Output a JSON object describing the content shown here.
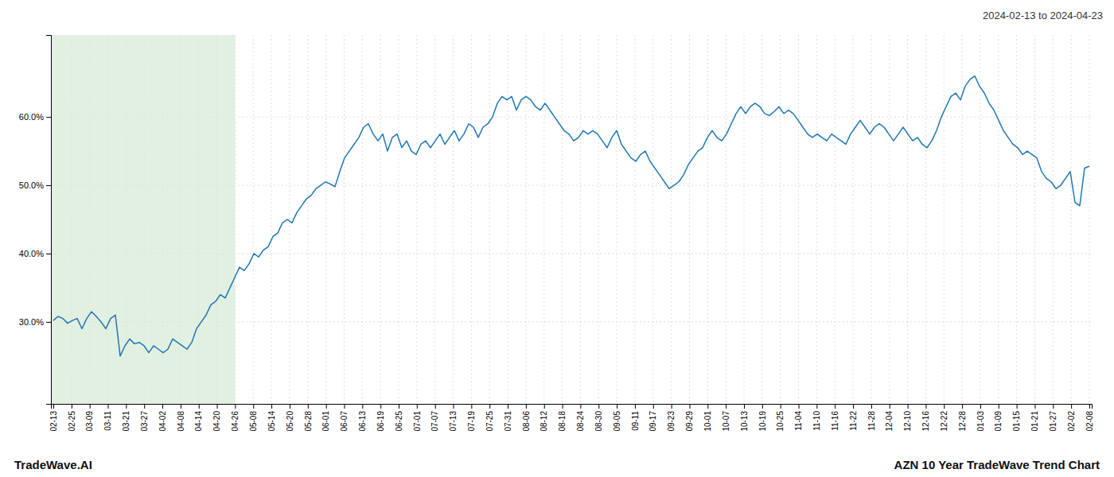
{
  "chart_data": {
    "type": "line",
    "title": "AZN 10 Year TradeWave Trend Chart",
    "subtitle": "2024-02-13 to 2024-04-23",
    "annotations": [
      "TradeWave.AI"
    ],
    "grid": true,
    "xlim": [
      -0.5,
      217.5
    ],
    "xticks": [
      {
        "value": 0,
        "label": "02-13"
      },
      {
        "value": 3.81,
        "label": "02-25"
      },
      {
        "value": 7.61,
        "label": "03-09"
      },
      {
        "value": 11.42,
        "label": "03-11"
      },
      {
        "value": 15.23,
        "label": "03-21"
      },
      {
        "value": 19.04,
        "label": "03-27"
      },
      {
        "value": 22.84,
        "label": "04-02"
      },
      {
        "value": 26.65,
        "label": "04-08"
      },
      {
        "value": 30.46,
        "label": "04-14"
      },
      {
        "value": 34.26,
        "label": "04-20"
      },
      {
        "value": 38.07,
        "label": "04-26"
      },
      {
        "value": 41.88,
        "label": "05-08"
      },
      {
        "value": 45.68,
        "label": "05-14"
      },
      {
        "value": 49.49,
        "label": "05-20"
      },
      {
        "value": 53.3,
        "label": "05-28"
      },
      {
        "value": 57.11,
        "label": "06-01"
      },
      {
        "value": 60.91,
        "label": "06-07"
      },
      {
        "value": 64.72,
        "label": "06-13"
      },
      {
        "value": 68.53,
        "label": "06-19"
      },
      {
        "value": 72.33,
        "label": "06-25"
      },
      {
        "value": 76.14,
        "label": "07-01"
      },
      {
        "value": 79.95,
        "label": "07-07"
      },
      {
        "value": 83.75,
        "label": "07-13"
      },
      {
        "value": 87.56,
        "label": "07-19"
      },
      {
        "value": 91.37,
        "label": "07-25"
      },
      {
        "value": 95.18,
        "label": "07-31"
      },
      {
        "value": 98.98,
        "label": "08-06"
      },
      {
        "value": 102.79,
        "label": "08-12"
      },
      {
        "value": 106.6,
        "label": "08-18"
      },
      {
        "value": 110.4,
        "label": "08-24"
      },
      {
        "value": 114.21,
        "label": "08-30"
      },
      {
        "value": 118.02,
        "label": "09-05"
      },
      {
        "value": 121.82,
        "label": "09-11"
      },
      {
        "value": 125.63,
        "label": "09-17"
      },
      {
        "value": 129.44,
        "label": "09-23"
      },
      {
        "value": 133.25,
        "label": "09-29"
      },
      {
        "value": 137.05,
        "label": "10-01"
      },
      {
        "value": 140.86,
        "label": "10-07"
      },
      {
        "value": 144.67,
        "label": "10-13"
      },
      {
        "value": 148.47,
        "label": "10-19"
      },
      {
        "value": 152.28,
        "label": "10-25"
      },
      {
        "value": 156.09,
        "label": "11-04"
      },
      {
        "value": 159.89,
        "label": "11-10"
      },
      {
        "value": 163.7,
        "label": "11-16"
      },
      {
        "value": 167.51,
        "label": "11-22"
      },
      {
        "value": 171.32,
        "label": "11-28"
      },
      {
        "value": 175.12,
        "label": "12-04"
      },
      {
        "value": 178.93,
        "label": "12-10"
      },
      {
        "value": 182.74,
        "label": "12-16"
      },
      {
        "value": 186.54,
        "label": "12-22"
      },
      {
        "value": 190.35,
        "label": "12-28"
      },
      {
        "value": 194.16,
        "label": "01-03"
      },
      {
        "value": 197.96,
        "label": "01-09"
      },
      {
        "value": 201.77,
        "label": "01-15"
      },
      {
        "value": 205.58,
        "label": "01-21"
      },
      {
        "value": 209.39,
        "label": "01-27"
      },
      {
        "value": 213.19,
        "label": "02-02"
      },
      {
        "value": 217,
        "label": "02-08"
      }
    ],
    "ylim": [
      18.0,
      72.0
    ],
    "yticks": [
      {
        "value": 30.0,
        "label": "30.0%"
      },
      {
        "value": 40.0,
        "label": "40.0%"
      },
      {
        "value": 50.0,
        "label": "50.0%"
      },
      {
        "value": 60.0,
        "label": "60.0%"
      }
    ],
    "shaded_region": {
      "start": -0.5,
      "end": 38.07,
      "color": "#d5ead5"
    },
    "values": [
      30.2,
      30.8,
      30.5,
      29.8,
      30.2,
      30.5,
      29.0,
      30.5,
      31.5,
      30.8,
      30.0,
      29.0,
      30.5,
      31.0,
      25.0,
      26.5,
      27.5,
      26.8,
      27.0,
      26.5,
      25.5,
      26.5,
      26.0,
      25.5,
      26.0,
      27.5,
      27.0,
      26.5,
      26.0,
      27.0,
      29.0,
      30.0,
      31.0,
      32.5,
      33.0,
      34.0,
      33.5,
      35.0,
      36.5,
      38.0,
      37.5,
      38.5,
      40.0,
      39.5,
      40.5,
      41.0,
      42.5,
      43.0,
      44.5,
      45.0,
      44.5,
      46.0,
      47.0,
      48.0,
      48.5,
      49.5,
      50.0,
      50.5,
      50.2,
      49.8,
      52.0,
      54.0,
      55.0,
      56.0,
      57.0,
      58.5,
      59.0,
      57.5,
      56.5,
      57.5,
      55.0,
      57.0,
      57.5,
      55.5,
      56.5,
      55.0,
      54.5,
      56.0,
      56.5,
      55.5,
      56.5,
      57.5,
      56.0,
      57.0,
      58.0,
      56.5,
      57.5,
      59.0,
      58.5,
      57.0,
      58.5,
      59.0,
      60.0,
      62.0,
      63.0,
      62.5,
      63.0,
      61.0,
      62.5,
      63.0,
      62.5,
      61.5,
      61.0,
      62.0,
      61.0,
      60.0,
      59.0,
      58.0,
      57.5,
      56.5,
      57.0,
      58.0,
      57.5,
      58.0,
      57.5,
      56.5,
      55.5,
      57.0,
      58.0,
      56.0,
      55.0,
      54.0,
      53.5,
      54.5,
      55.0,
      53.5,
      52.5,
      51.5,
      50.5,
      49.5,
      50.0,
      50.5,
      51.5,
      53.0,
      54.0,
      55.0,
      55.5,
      57.0,
      58.0,
      57.0,
      56.5,
      57.5,
      59.0,
      60.5,
      61.5,
      60.5,
      61.5,
      62.0,
      61.5,
      60.5,
      60.2,
      60.8,
      61.5,
      60.5,
      61.0,
      60.5,
      59.5,
      58.5,
      57.5,
      57.0,
      57.5,
      57.0,
      56.5,
      57.5,
      57.0,
      56.5,
      56.0,
      57.5,
      58.5,
      59.5,
      58.5,
      57.5,
      58.5,
      59.0,
      58.5,
      57.5,
      56.5,
      57.5,
      58.5,
      57.5,
      56.5,
      57.0,
      56.0,
      55.5,
      56.5,
      58.0,
      60.0,
      61.5,
      63.0,
      63.5,
      62.5,
      64.5,
      65.5,
      66.0,
      64.5,
      63.5,
      62.0,
      61.0,
      59.5,
      58.0,
      57.0,
      56.0,
      55.5,
      54.5,
      55.0,
      54.5,
      54.0,
      52.0,
      51.0,
      50.5,
      49.5,
      50.0,
      51.0,
      52.0,
      47.5,
      47.0,
      52.5,
      52.8
    ]
  }
}
